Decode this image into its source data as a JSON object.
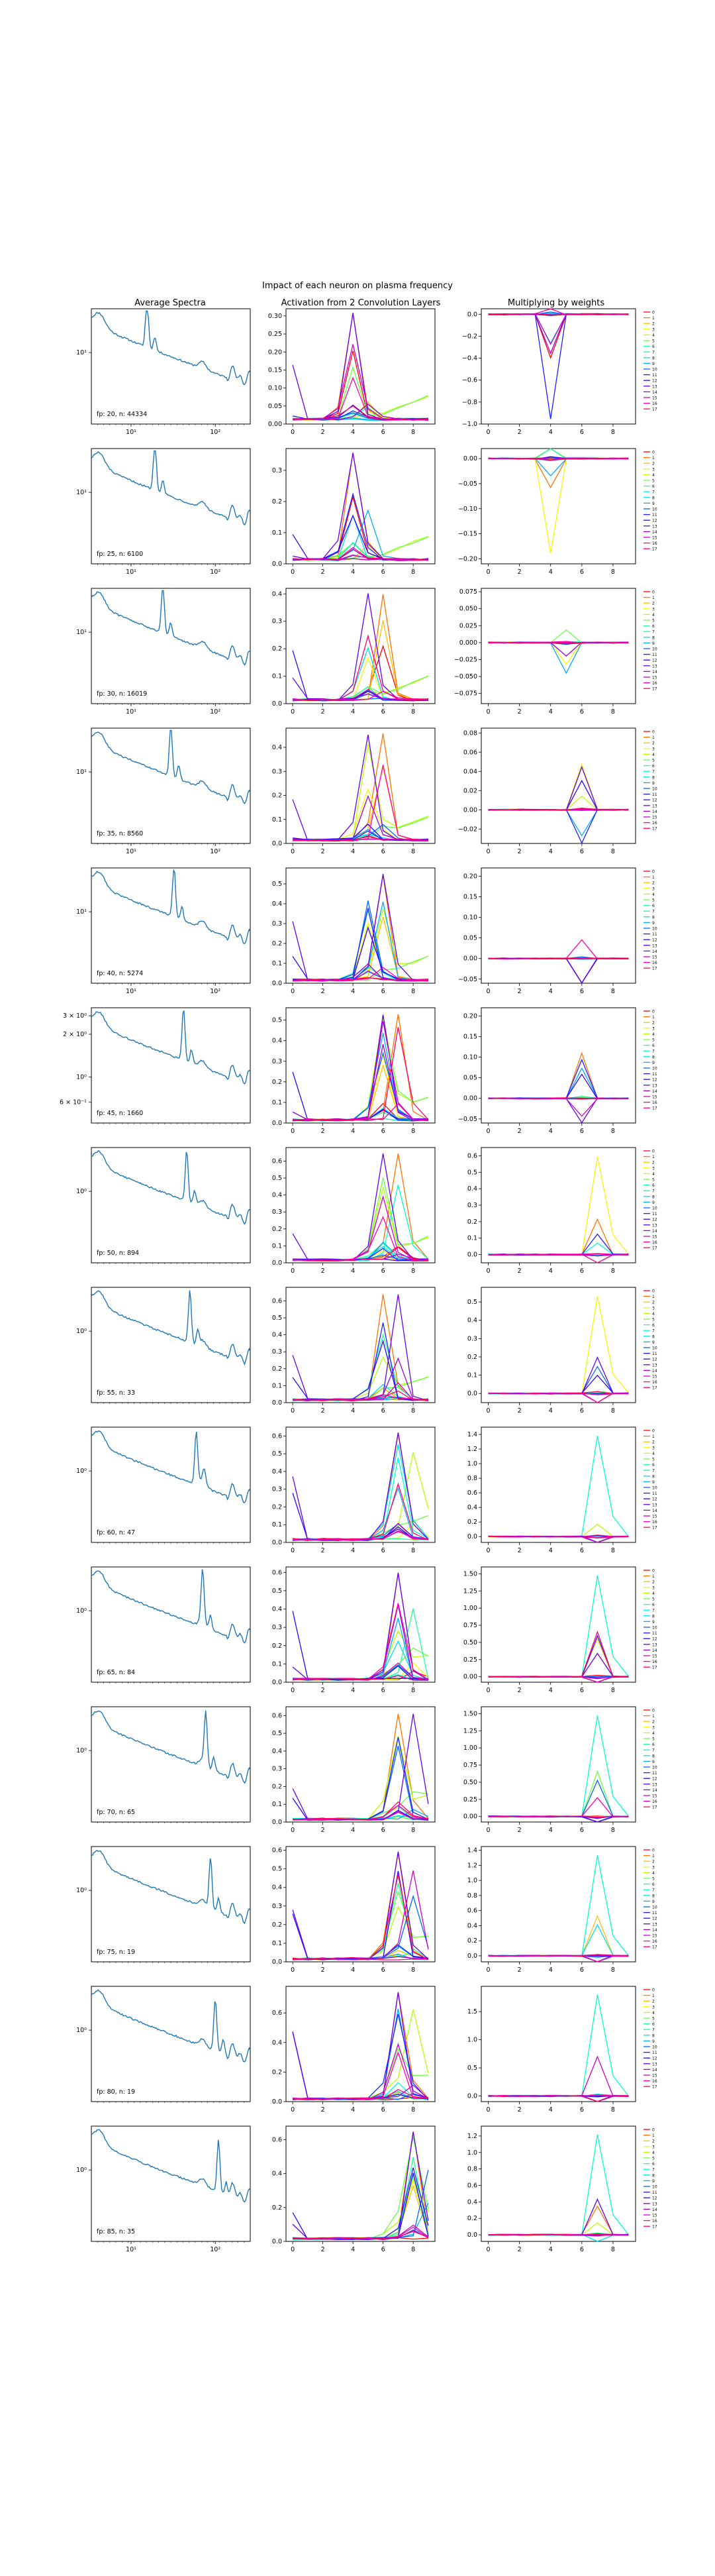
{
  "figure": {
    "suptitle": "Impact of each neuron on plasma frequency",
    "column_titles": [
      "Average Spectra",
      "Activation from 2 Convolution Layers",
      "Multiplying by weights"
    ],
    "legend_labels": [
      "0",
      "1",
      "2",
      "3",
      "4",
      "5",
      "6",
      "7",
      "8",
      "9",
      "10",
      "11",
      "12",
      "13",
      "14",
      "15",
      "16",
      "17"
    ],
    "series_colors": [
      "#ff0000",
      "#ff7300",
      "#ffbf00",
      "#f6f600",
      "#b8ff00",
      "#66ff44",
      "#22ff99",
      "#00ffcc",
      "#00ddee",
      "#00aaff",
      "#0066ff",
      "#1f1fff",
      "#3300ff",
      "#6600ee",
      "#9900dd",
      "#cc00cc",
      "#ff00aa",
      "#ff0066"
    ],
    "spectrum_color": "#1f77b4"
  },
  "chart_data": [
    {
      "type": "line",
      "row": 0,
      "panel": "spectrum",
      "annotation": "fp: 20, n: 44334",
      "xscale": "log",
      "yscale": "log",
      "xticklabels": [
        "10¹",
        "10²"
      ],
      "yticklabels": [
        "10¹"
      ],
      "peak": 0.35
    },
    {
      "type": "line",
      "row": 0,
      "panel": "activation",
      "xlim": [
        0,
        9
      ],
      "ylim": [
        0,
        0.32
      ],
      "xticks": [
        0,
        2,
        4,
        6,
        8
      ],
      "yticks": [
        0,
        0.05,
        0.1,
        0.15,
        0.2,
        0.25,
        0.3
      ],
      "yticklabels": [
        "0.00",
        "0.05",
        "0.10",
        "0.15",
        "0.20",
        "0.25",
        "0.30"
      ],
      "peak_x": 4
    },
    {
      "type": "line",
      "row": 0,
      "panel": "weighted",
      "xlim": [
        0,
        9
      ],
      "ylim": [
        -1.0,
        0.05
      ],
      "xticks": [
        0,
        2,
        4,
        6,
        8
      ],
      "yticks": [
        0,
        -0.2,
        -0.4,
        -0.6,
        -0.8,
        -1.0
      ],
      "yticklabels": [
        "0.0",
        "−0.2",
        "−0.4",
        "−0.6",
        "−0.8",
        "−1.0"
      ],
      "peak_x": 4
    },
    {
      "type": "line",
      "row": 1,
      "panel": "spectrum",
      "annotation": "fp: 25, n: 6100",
      "xscale": "log",
      "yscale": "log",
      "xticklabels": [
        "10¹",
        "10²"
      ],
      "yticklabels": [
        "10¹"
      ],
      "peak": 0.4
    },
    {
      "type": "line",
      "row": 1,
      "panel": "activation",
      "xlim": [
        0,
        9
      ],
      "ylim": [
        0,
        0.37
      ],
      "xticks": [
        0,
        2,
        4,
        6,
        8
      ],
      "yticks": [
        0,
        0.1,
        0.2,
        0.3
      ],
      "yticklabels": [
        "0.0",
        "0.1",
        "0.2",
        "0.3"
      ],
      "peak_x": 4
    },
    {
      "type": "line",
      "row": 1,
      "panel": "weighted",
      "xlim": [
        0,
        9
      ],
      "ylim": [
        -0.21,
        0.02
      ],
      "xticks": [
        0,
        2,
        4,
        6,
        8
      ],
      "yticks": [
        0,
        -0.05,
        -0.1,
        -0.15,
        -0.2
      ],
      "yticklabels": [
        "0.00",
        "−0.05",
        "−0.10",
        "−0.15",
        "−0.20"
      ],
      "peak_x": 4
    },
    {
      "type": "line",
      "row": 2,
      "panel": "spectrum",
      "annotation": "fp: 30, n: 16019",
      "xscale": "log",
      "yscale": "log",
      "xticklabels": [
        "10¹",
        "10²"
      ],
      "yticklabels": [
        "10¹"
      ],
      "peak": 0.45
    },
    {
      "type": "line",
      "row": 2,
      "panel": "activation",
      "xlim": [
        0,
        9
      ],
      "ylim": [
        0,
        0.42
      ],
      "xticks": [
        0,
        2,
        4,
        6,
        8
      ],
      "yticks": [
        0,
        0.1,
        0.2,
        0.3,
        0.4
      ],
      "yticklabels": [
        "0.0",
        "0.1",
        "0.2",
        "0.3",
        "0.4"
      ],
      "peak_x": 5
    },
    {
      "type": "line",
      "row": 2,
      "panel": "weighted",
      "xlim": [
        0,
        9
      ],
      "ylim": [
        -0.09,
        0.08
      ],
      "xticks": [
        0,
        2,
        4,
        6,
        8
      ],
      "yticks": [
        0.075,
        0.05,
        0.025,
        0,
        -0.025,
        -0.05,
        -0.075
      ],
      "yticklabels": [
        "0.075",
        "0.050",
        "0.025",
        "0.000",
        "−0.025",
        "−0.050",
        "−0.075"
      ],
      "peak_x": 5
    },
    {
      "type": "line",
      "row": 3,
      "panel": "spectrum",
      "annotation": "fp: 35, n: 8560",
      "xscale": "log",
      "yscale": "log",
      "xticklabels": [
        "10¹",
        "10²"
      ],
      "yticklabels": [
        "10¹"
      ],
      "peak": 0.5
    },
    {
      "type": "line",
      "row": 3,
      "panel": "activation",
      "xlim": [
        0,
        9
      ],
      "ylim": [
        0,
        0.48
      ],
      "xticks": [
        0,
        2,
        4,
        6,
        8
      ],
      "yticks": [
        0,
        0.1,
        0.2,
        0.3,
        0.4
      ],
      "yticklabels": [
        "0.0",
        "0.1",
        "0.2",
        "0.3",
        "0.4"
      ],
      "peak_x": 5
    },
    {
      "type": "line",
      "row": 3,
      "panel": "weighted",
      "xlim": [
        0,
        9
      ],
      "ylim": [
        -0.035,
        0.085
      ],
      "xticks": [
        0,
        2,
        4,
        6,
        8
      ],
      "yticks": [
        0.08,
        0.06,
        0.04,
        0.02,
        0,
        -0.02
      ],
      "yticklabels": [
        "0.08",
        "0.06",
        "0.04",
        "0.02",
        "0.00",
        "−0.02"
      ],
      "peak_x": 6
    },
    {
      "type": "line",
      "row": 4,
      "panel": "spectrum",
      "annotation": "fp: 40, n: 5274",
      "xscale": "log",
      "yscale": "log",
      "xticklabels": [
        "10¹",
        "10²"
      ],
      "yticklabels": [
        "10¹"
      ],
      "peak": 0.52
    },
    {
      "type": "line",
      "row": 4,
      "panel": "activation",
      "xlim": [
        0,
        9
      ],
      "ylim": [
        0,
        0.58
      ],
      "xticks": [
        0,
        2,
        4,
        6,
        8
      ],
      "yticks": [
        0,
        0.1,
        0.2,
        0.3,
        0.4,
        0.5
      ],
      "yticklabels": [
        "0.0",
        "0.1",
        "0.2",
        "0.3",
        "0.4",
        "0.5"
      ],
      "peak_x": 5
    },
    {
      "type": "line",
      "row": 4,
      "panel": "weighted",
      "xlim": [
        0,
        9
      ],
      "ylim": [
        -0.06,
        0.22
      ],
      "xticks": [
        0,
        2,
        4,
        6,
        8
      ],
      "yticks": [
        0.2,
        0.15,
        0.1,
        0.05,
        0,
        -0.05
      ],
      "yticklabels": [
        "0.20",
        "0.15",
        "0.10",
        "0.05",
        "0.00",
        "−0.05"
      ],
      "peak_x": 6
    },
    {
      "type": "line",
      "row": 5,
      "panel": "spectrum",
      "annotation": "fp: 45, n: 1660",
      "xscale": "log",
      "yscale": "log",
      "yticklabels": [
        "3 × 10⁰",
        "2 × 10⁰",
        "10⁰",
        "6 × 10⁻¹"
      ],
      "peak": 0.58
    },
    {
      "type": "line",
      "row": 5,
      "panel": "activation",
      "xlim": [
        0,
        9
      ],
      "ylim": [
        0,
        0.56
      ],
      "xticks": [
        0,
        2,
        4,
        6,
        8
      ],
      "yticks": [
        0,
        0.1,
        0.2,
        0.3,
        0.4,
        0.5
      ],
      "yticklabels": [
        "0.0",
        "0.1",
        "0.2",
        "0.3",
        "0.4",
        "0.5"
      ],
      "peak_x": 6
    },
    {
      "type": "line",
      "row": 5,
      "panel": "weighted",
      "xlim": [
        0,
        9
      ],
      "ylim": [
        -0.06,
        0.22
      ],
      "xticks": [
        0,
        2,
        4,
        6,
        8
      ],
      "yticks": [
        0.2,
        0.15,
        0.1,
        0.05,
        0,
        -0.05
      ],
      "yticklabels": [
        "0.20",
        "0.15",
        "0.10",
        "0.05",
        "0.00",
        "−0.05"
      ],
      "peak_x": 6
    },
    {
      "type": "line",
      "row": 6,
      "panel": "spectrum",
      "annotation": "fp: 50, n: 894",
      "xscale": "log",
      "yscale": "log",
      "yticklabels": [
        "10⁰"
      ],
      "peak": 0.6
    },
    {
      "type": "line",
      "row": 6,
      "panel": "activation",
      "xlim": [
        0,
        9
      ],
      "ylim": [
        0,
        0.68
      ],
      "xticks": [
        0,
        2,
        4,
        6,
        8
      ],
      "yticks": [
        0,
        0.1,
        0.2,
        0.3,
        0.4,
        0.5,
        0.6
      ],
      "yticklabels": [
        "0.0",
        "0.1",
        "0.2",
        "0.3",
        "0.4",
        "0.5",
        "0.6"
      ],
      "peak_x": 6
    },
    {
      "type": "line",
      "row": 6,
      "panel": "weighted",
      "xlim": [
        0,
        9
      ],
      "ylim": [
        -0.05,
        0.65
      ],
      "xticks": [
        0,
        2,
        4,
        6,
        8
      ],
      "yticks": [
        0,
        0.1,
        0.2,
        0.3,
        0.4,
        0.5,
        0.6
      ],
      "yticklabels": [
        "0.0",
        "0.1",
        "0.2",
        "0.3",
        "0.4",
        "0.5",
        "0.6"
      ],
      "peak_x": 7
    },
    {
      "type": "line",
      "row": 7,
      "panel": "spectrum",
      "annotation": "fp: 55, n: 33",
      "xscale": "log",
      "yscale": "log",
      "yticklabels": [
        "10⁰"
      ],
      "peak": 0.62
    },
    {
      "type": "line",
      "row": 7,
      "panel": "activation",
      "xlim": [
        0,
        9
      ],
      "ylim": [
        0,
        0.68
      ],
      "xticks": [
        0,
        2,
        4,
        6,
        8
      ],
      "yticks": [
        0,
        0.1,
        0.2,
        0.3,
        0.4,
        0.5,
        0.6
      ],
      "yticklabels": [
        "0.0",
        "0.1",
        "0.2",
        "0.3",
        "0.4",
        "0.5",
        "0.6"
      ],
      "peak_x": 6
    },
    {
      "type": "line",
      "row": 7,
      "panel": "weighted",
      "xlim": [
        0,
        9
      ],
      "ylim": [
        -0.05,
        0.58
      ],
      "xticks": [
        0,
        2,
        4,
        6,
        8
      ],
      "yticks": [
        0,
        0.1,
        0.2,
        0.3,
        0.4,
        0.5
      ],
      "yticklabels": [
        "0.0",
        "0.1",
        "0.2",
        "0.3",
        "0.4",
        "0.5"
      ],
      "peak_x": 7
    },
    {
      "type": "line",
      "row": 8,
      "panel": "spectrum",
      "annotation": "fp: 60, n: 47",
      "xscale": "log",
      "yscale": "log",
      "yticklabels": [
        "10⁰"
      ],
      "peak": 0.66
    },
    {
      "type": "line",
      "row": 8,
      "panel": "activation",
      "xlim": [
        0,
        9
      ],
      "ylim": [
        0,
        0.65
      ],
      "xticks": [
        0,
        2,
        4,
        6,
        8
      ],
      "yticks": [
        0,
        0.1,
        0.2,
        0.3,
        0.4,
        0.5,
        0.6
      ],
      "yticklabels": [
        "0.0",
        "0.1",
        "0.2",
        "0.3",
        "0.4",
        "0.5",
        "0.6"
      ],
      "peak_x": 7
    },
    {
      "type": "line",
      "row": 8,
      "panel": "weighted",
      "xlim": [
        0,
        9
      ],
      "ylim": [
        -0.08,
        1.5
      ],
      "xticks": [
        0,
        2,
        4,
        6,
        8
      ],
      "yticks": [
        0,
        0.2,
        0.4,
        0.6,
        0.8,
        1.0,
        1.2,
        1.4
      ],
      "yticklabels": [
        "0.0",
        "0.2",
        "0.4",
        "0.6",
        "0.8",
        "1.0",
        "1.2",
        "1.4"
      ],
      "peak_x": 7
    },
    {
      "type": "line",
      "row": 9,
      "panel": "spectrum",
      "annotation": "fp: 65, n: 84",
      "xscale": "log",
      "yscale": "log",
      "yticklabels": [
        "10⁰"
      ],
      "peak": 0.7
    },
    {
      "type": "line",
      "row": 9,
      "panel": "activation",
      "xlim": [
        0,
        9
      ],
      "ylim": [
        0,
        0.63
      ],
      "xticks": [
        0,
        2,
        4,
        6,
        8
      ],
      "yticks": [
        0,
        0.1,
        0.2,
        0.3,
        0.4,
        0.5,
        0.6
      ],
      "yticklabels": [
        "0.0",
        "0.1",
        "0.2",
        "0.3",
        "0.4",
        "0.5",
        "0.6"
      ],
      "peak_x": 7
    },
    {
      "type": "line",
      "row": 9,
      "panel": "weighted",
      "xlim": [
        0,
        9
      ],
      "ylim": [
        -0.08,
        1.6
      ],
      "xticks": [
        0,
        2,
        4,
        6,
        8
      ],
      "yticks": [
        0,
        0.25,
        0.5,
        0.75,
        1.0,
        1.25,
        1.5
      ],
      "yticklabels": [
        "0.00",
        "0.25",
        "0.50",
        "0.75",
        "1.00",
        "1.25",
        "1.50"
      ],
      "peak_x": 7
    },
    {
      "type": "line",
      "row": 10,
      "panel": "spectrum",
      "annotation": "fp: 70, n: 65",
      "xscale": "log",
      "yscale": "log",
      "yticklabels": [
        "10⁰"
      ],
      "peak": 0.72
    },
    {
      "type": "line",
      "row": 10,
      "panel": "activation",
      "xlim": [
        0,
        9
      ],
      "ylim": [
        0,
        0.65
      ],
      "xticks": [
        0,
        2,
        4,
        6,
        8
      ],
      "yticks": [
        0,
        0.1,
        0.2,
        0.3,
        0.4,
        0.5,
        0.6
      ],
      "yticklabels": [
        "0.0",
        "0.1",
        "0.2",
        "0.3",
        "0.4",
        "0.5",
        "0.6"
      ],
      "peak_x": 7
    },
    {
      "type": "line",
      "row": 10,
      "panel": "weighted",
      "xlim": [
        0,
        9
      ],
      "ylim": [
        -0.08,
        1.6
      ],
      "xticks": [
        0,
        2,
        4,
        6,
        8
      ],
      "yticks": [
        0,
        0.25,
        0.5,
        0.75,
        1.0,
        1.25,
        1.5
      ],
      "yticklabels": [
        "0.00",
        "0.25",
        "0.50",
        "0.75",
        "1.00",
        "1.25",
        "1.50"
      ],
      "peak_x": 7
    },
    {
      "type": "line",
      "row": 11,
      "panel": "spectrum",
      "annotation": "fp: 75, n: 19",
      "xscale": "log",
      "yscale": "log",
      "yticklabels": [
        "10⁰"
      ],
      "peak": 0.75
    },
    {
      "type": "line",
      "row": 11,
      "panel": "activation",
      "xlim": [
        0,
        9
      ],
      "ylim": [
        0,
        0.62
      ],
      "xticks": [
        0,
        2,
        4,
        6,
        8
      ],
      "yticks": [
        0,
        0.1,
        0.2,
        0.3,
        0.4,
        0.5,
        0.6
      ],
      "yticklabels": [
        "0.0",
        "0.1",
        "0.2",
        "0.3",
        "0.4",
        "0.5",
        "0.6"
      ],
      "peak_x": 7
    },
    {
      "type": "line",
      "row": 11,
      "panel": "weighted",
      "xlim": [
        0,
        9
      ],
      "ylim": [
        -0.08,
        1.45
      ],
      "xticks": [
        0,
        2,
        4,
        6,
        8
      ],
      "yticks": [
        0,
        0.2,
        0.4,
        0.6,
        0.8,
        1.0,
        1.2,
        1.4
      ],
      "yticklabels": [
        "0.0",
        "0.2",
        "0.4",
        "0.6",
        "0.8",
        "1.0",
        "1.2",
        "1.4"
      ],
      "peak_x": 7
    },
    {
      "type": "line",
      "row": 12,
      "panel": "spectrum",
      "annotation": "fp: 80, n: 19",
      "xscale": "log",
      "yscale": "log",
      "yticklabels": [
        "10⁰"
      ],
      "peak": 0.78
    },
    {
      "type": "line",
      "row": 12,
      "panel": "activation",
      "xlim": [
        0,
        9
      ],
      "ylim": [
        0,
        0.78
      ],
      "xticks": [
        0,
        2,
        4,
        6,
        8
      ],
      "yticks": [
        0,
        0.2,
        0.4,
        0.6
      ],
      "yticklabels": [
        "0.0",
        "0.2",
        "0.4",
        "0.6"
      ],
      "peak_x": 7
    },
    {
      "type": "line",
      "row": 12,
      "panel": "weighted",
      "xlim": [
        0,
        9
      ],
      "ylim": [
        -0.1,
        1.95
      ],
      "xticks": [
        0,
        2,
        4,
        6,
        8
      ],
      "yticks": [
        0,
        0.5,
        1.0,
        1.5
      ],
      "yticklabels": [
        "0.0",
        "0.5",
        "1.0",
        "1.5"
      ],
      "peak_x": 7
    },
    {
      "type": "line",
      "row": 13,
      "panel": "spectrum",
      "annotation": "fp: 85, n: 35",
      "xscale": "log",
      "yscale": "log",
      "xticklabels": [
        "10¹",
        "10²"
      ],
      "yticklabels": [
        "10⁰"
      ],
      "peak": 0.8
    },
    {
      "type": "line",
      "row": 13,
      "panel": "activation",
      "xlim": [
        0,
        9
      ],
      "ylim": [
        0,
        0.68
      ],
      "xticks": [
        0,
        2,
        4,
        6,
        8
      ],
      "yticks": [
        0,
        0.2,
        0.4,
        0.6
      ],
      "yticklabels": [
        "0.0",
        "0.2",
        "0.4",
        "0.6"
      ],
      "peak_x": 8
    },
    {
      "type": "line",
      "row": 13,
      "panel": "weighted",
      "xlim": [
        0,
        9
      ],
      "ylim": [
        -0.08,
        1.32
      ],
      "xticks": [
        0,
        2,
        4,
        6,
        8
      ],
      "yticks": [
        0,
        0.2,
        0.4,
        0.6,
        0.8,
        1.0,
        1.2
      ],
      "yticklabels": [
        "0.0",
        "0.2",
        "0.4",
        "0.6",
        "0.8",
        "1.0",
        "1.2"
      ],
      "peak_x": 7
    }
  ]
}
